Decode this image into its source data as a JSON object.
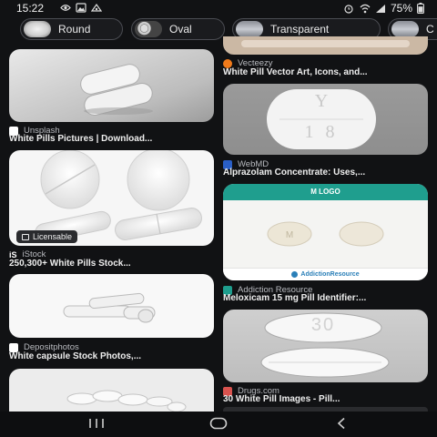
{
  "status": {
    "time": "15:22",
    "battery": "75%"
  },
  "chips": [
    {
      "label": "Round"
    },
    {
      "label": "Oval"
    },
    {
      "label": "Transparent"
    },
    {
      "label": "C"
    }
  ],
  "results_left": [
    {
      "source": "Unsplash",
      "title": "White Pills Pictures | Download..."
    },
    {
      "source": "iStock",
      "title": "250,300+ White Pills Stock...",
      "badge": "Licensable"
    },
    {
      "source": "Depositphotos",
      "title": "White capsule Stock Photos,..."
    }
  ],
  "results_right": [
    {
      "source": "Vecteezy",
      "title": "White Pill Vector Art, Icons, and..."
    },
    {
      "source": "WebMD",
      "title": "Alprazolam Concentrate: Uses,...",
      "imprint_top": "Y",
      "imprint_bottom": "1 8"
    },
    {
      "source": "Addiction Resource",
      "title": "Meloxicam 15 mg Pill Identifier:...",
      "header": "M LOGO",
      "footer": "AddictionResource"
    },
    {
      "source": "Drugs.com",
      "title": "30 White Pill Images - Pill...",
      "imprint": "30"
    }
  ],
  "colors": {
    "background": "#111214",
    "chip_border": "#4a4c52",
    "teal_header": "#1f9e8e"
  }
}
